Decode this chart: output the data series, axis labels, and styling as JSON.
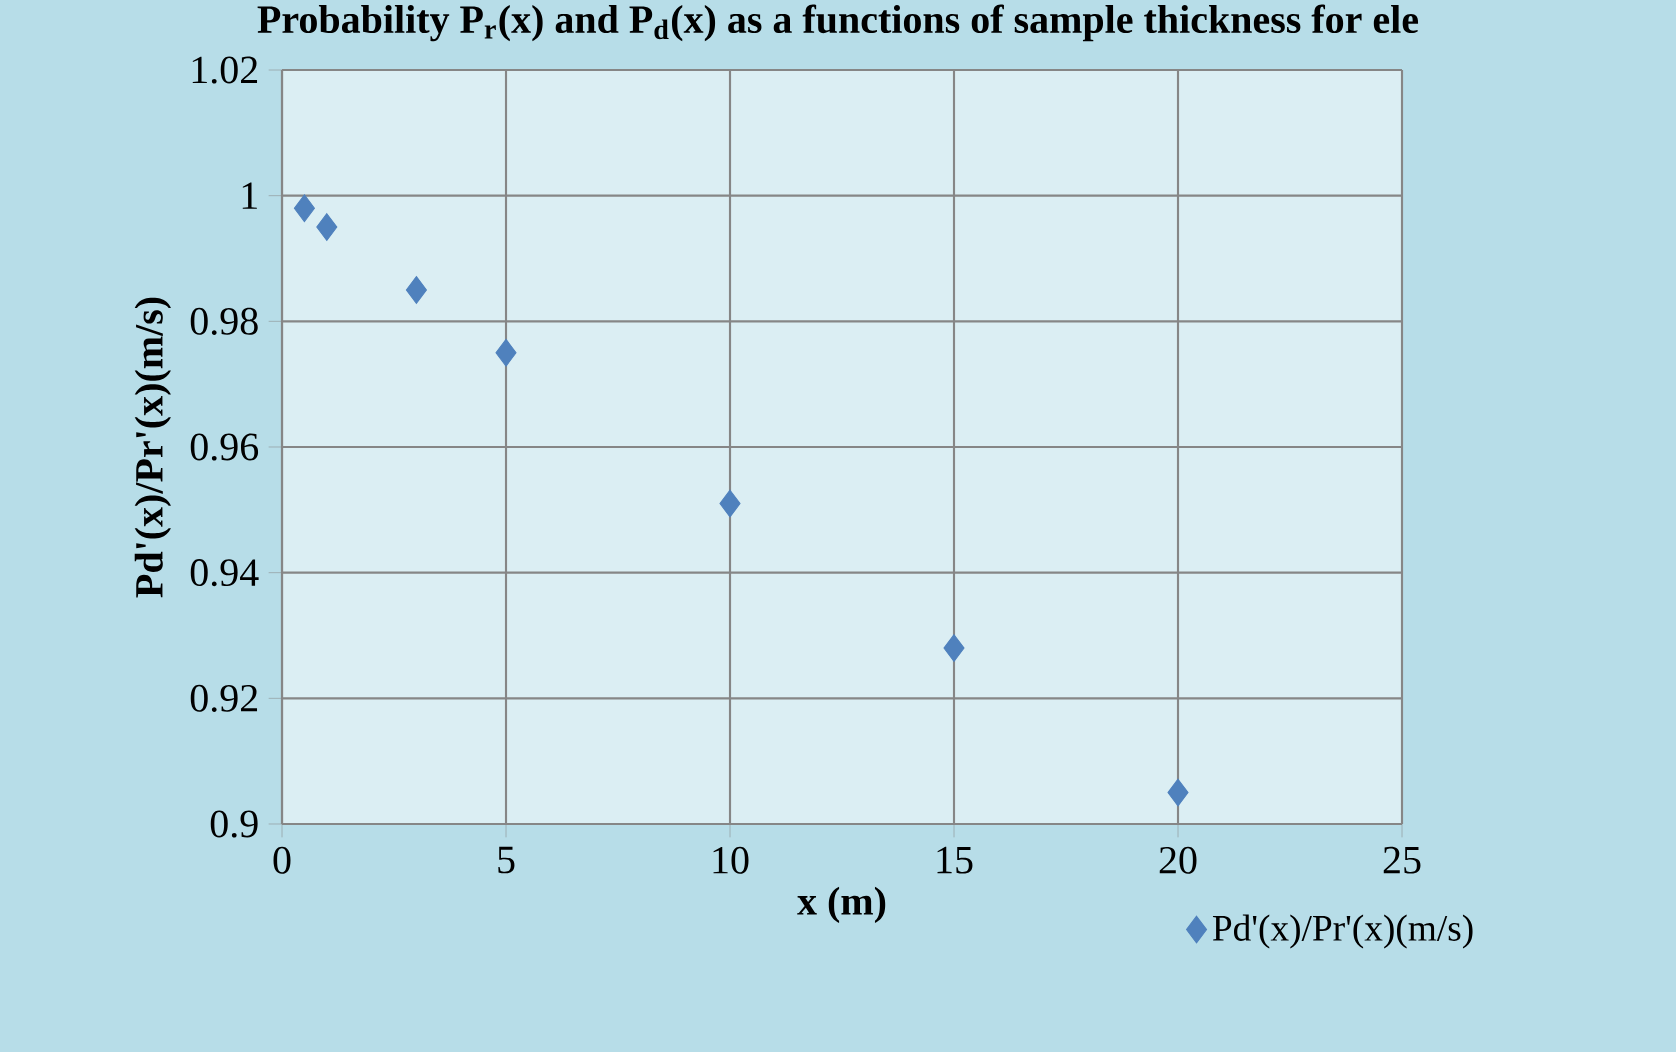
{
  "chart_data": {
    "type": "scatter",
    "title": "Probability P$_{r}$(x) and P$_{d}$(x) as a functions of sample thickness for ele",
    "xlabel": "x (m)",
    "ylabel": "Pd'(x)/Pr'(x)(m/s)",
    "series": [
      {
        "name": "Pd'(x)/Pr'(x)(m/s)",
        "color": "#4f81bd",
        "x": [
          0.5,
          1,
          3,
          5,
          10,
          15,
          20
        ],
        "values": [
          0.998,
          0.995,
          0.985,
          0.975,
          0.951,
          0.928,
          0.905
        ]
      }
    ],
    "xlim": [
      0,
      25
    ],
    "ylim": [
      0.9,
      1.02
    ],
    "xticks": [
      0,
      5,
      10,
      15,
      20,
      25
    ],
    "yticks": [
      0.9,
      0.92,
      0.94,
      0.96,
      0.98,
      1,
      1.02
    ],
    "grid": true,
    "legend": "bottom right",
    "marker": "diamond"
  }
}
